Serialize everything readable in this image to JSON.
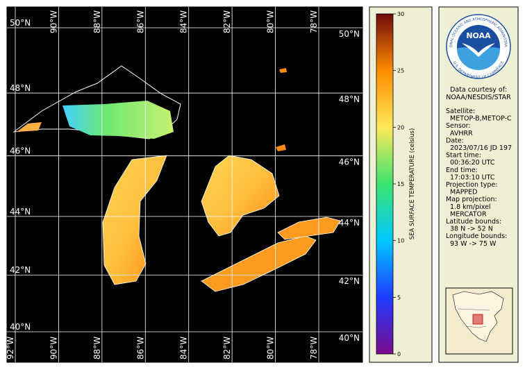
{
  "map": {
    "lat_ticks": [
      {
        "value": 50,
        "label": "50°N"
      },
      {
        "value": 48,
        "label": "48°N"
      },
      {
        "value": 46,
        "label": "46°N"
      },
      {
        "value": 44,
        "label": "44°N"
      },
      {
        "value": 42,
        "label": "42°N"
      },
      {
        "value": 40,
        "label": "40°N"
      }
    ],
    "lon_ticks": [
      {
        "value": -92,
        "label": "92°W"
      },
      {
        "value": -90,
        "label": "90°W"
      },
      {
        "value": -88,
        "label": "88°W"
      },
      {
        "value": -86,
        "label": "86°W"
      },
      {
        "value": -84,
        "label": "84°W"
      },
      {
        "value": -82,
        "label": "82°W"
      },
      {
        "value": -80,
        "label": "80°W"
      },
      {
        "value": -78,
        "label": "78°W"
      }
    ]
  },
  "colorbar": {
    "label": "SEA SURFACE TEMPERATURE (celsius)",
    "lim": [
      0,
      30
    ],
    "ticks": [
      0,
      5,
      10,
      15,
      20,
      25,
      30
    ],
    "colors": [
      "#7a0a8c",
      "#1f3cff",
      "#00c8ff",
      "#3ce36e",
      "#ffe85a",
      "#ff8c00",
      "#6e0a0a"
    ]
  },
  "logo": {
    "name": "NOAA",
    "ring_top": "NATIONAL OCEANIC AND ATMOSPHERIC ADMINISTRATION",
    "ring_bottom": "U.S. DEPARTMENT OF COMMERCE"
  },
  "info": {
    "credit_label": "Data courtesy of:",
    "credit": "NOAA/NESDIS/STAR",
    "fields": [
      {
        "label": "Satellite:",
        "values": [
          "METOP-B,METOP-C"
        ]
      },
      {
        "label": "Sensor:",
        "values": [
          "AVHRR"
        ]
      },
      {
        "label": "Date:",
        "values": [
          "2023/07/16 JD 197"
        ]
      },
      {
        "label": "Start time:",
        "values": [
          "00:36:20 UTC"
        ]
      },
      {
        "label": "End time:",
        "values": [
          "17:03:10 UTC"
        ]
      },
      {
        "label": "Projection type:",
        "values": [
          "MAPPED"
        ]
      },
      {
        "label": "Map projection:",
        "values": [
          "1.8 km/pixel",
          "MERCATOR"
        ]
      },
      {
        "label": "Latitude bounds:",
        "values": [
          "38 N -> 52 N"
        ]
      },
      {
        "label": "Longitude bounds:",
        "values": [
          "93 W -> 75 W"
        ]
      }
    ]
  }
}
